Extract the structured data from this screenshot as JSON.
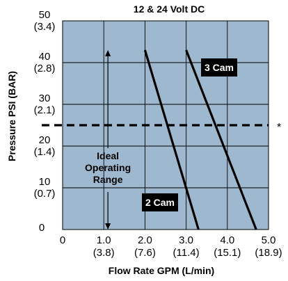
{
  "chart_data": {
    "type": "line",
    "title": "12 & 24 Volt DC",
    "xlabel": "Flow Rate GPM (L/min)",
    "ylabel": "Pressure PSI (BAR)",
    "xlim": [
      0,
      5.0
    ],
    "ylim": [
      0,
      50
    ],
    "x_ticks": [
      {
        "value": 0,
        "label": "0",
        "sub": ""
      },
      {
        "value": 1.0,
        "label": "1.0",
        "sub": "(3.8)"
      },
      {
        "value": 2.0,
        "label": "2.0",
        "sub": "(7.6)"
      },
      {
        "value": 3.0,
        "label": "3.0",
        "sub": "(11.4)"
      },
      {
        "value": 4.0,
        "label": "4.0",
        "sub": "(15.1)"
      },
      {
        "value": 5.0,
        "label": "5.0",
        "sub": "(18.9)"
      }
    ],
    "y_ticks": [
      {
        "value": 0,
        "label": "0",
        "sub": ""
      },
      {
        "value": 10,
        "label": "10",
        "sub": "(0.7)"
      },
      {
        "value": 20,
        "label": "20",
        "sub": "(1.4)"
      },
      {
        "value": 30,
        "label": "30",
        "sub": "(2.1)"
      },
      {
        "value": 40,
        "label": "40",
        "sub": "(2.8)"
      },
      {
        "value": 50,
        "label": "50",
        "sub": "(3.4)"
      }
    ],
    "grid": true,
    "plot_background": "#9eb8cf",
    "series": [
      {
        "name": "2 Cam",
        "x": [
          2.0,
          3.3
        ],
        "y": [
          43,
          0
        ]
      },
      {
        "name": "3 Cam",
        "x": [
          3.0,
          4.7
        ],
        "y": [
          43,
          0
        ]
      }
    ],
    "reference_line": {
      "y": 25,
      "style": "dashed",
      "marker": "*"
    },
    "annotation": {
      "lines": [
        "Ideal",
        "Operating",
        "Range"
      ],
      "arrow_from": 0,
      "arrow_to": 43,
      "x": 1.1
    }
  }
}
